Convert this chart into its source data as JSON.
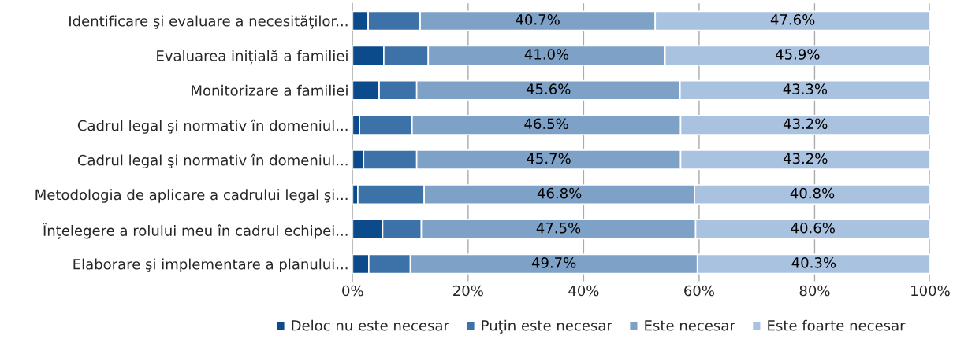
{
  "chart_data": {
    "type": "bar",
    "orientation": "horizontal",
    "stacked": true,
    "categories": [
      "Identificare şi evaluare a necesităţilor...",
      "Evaluarea inițială a familiei",
      "Monitorizare a familiei",
      "Cadrul legal şi normativ în domeniul...",
      "Cadrul legal şi normativ în domeniul...",
      "Metodologia de aplicare a cadrului legal şi...",
      "Înțelegere a rolului meu în cadrul echipei...",
      "Elaborare şi implementare a planului..."
    ],
    "series": [
      {
        "name": "Deloc nu este necesar",
        "color": "#0b4a8b",
        "values": [
          2.7,
          5.4,
          4.6,
          1.2,
          1.9,
          0.9,
          5.2,
          2.8
        ]
      },
      {
        "name": "Puţin este necesar",
        "color": "#3c72a8",
        "values": [
          9.0,
          7.7,
          6.5,
          9.1,
          9.2,
          11.5,
          6.7,
          7.2
        ]
      },
      {
        "name": "Este necesar",
        "color": "#7ea2c7",
        "values": [
          40.7,
          41.0,
          45.6,
          46.5,
          45.7,
          46.8,
          47.5,
          49.7
        ],
        "value_labels": [
          "40.7%",
          "41.0%",
          "45.6%",
          "46.5%",
          "45.7%",
          "46.8%",
          "47.5%",
          "49.7%"
        ]
      },
      {
        "name": "Este foarte necesar",
        "color": "#a9c2df",
        "values": [
          47.6,
          45.9,
          43.3,
          43.2,
          43.2,
          40.8,
          40.6,
          40.3
        ],
        "value_labels": [
          "47.6%",
          "45.9%",
          "43.3%",
          "43.2%",
          "43.2%",
          "40.8%",
          "40.6%",
          "40.3%"
        ]
      }
    ],
    "xlim": [
      0,
      100
    ],
    "xticks": [
      {
        "value": 0,
        "label": "0%"
      },
      {
        "value": 20,
        "label": "20%"
      },
      {
        "value": 40,
        "label": "40%"
      },
      {
        "value": 60,
        "label": "60%"
      },
      {
        "value": 80,
        "label": "80%"
      },
      {
        "value": 100,
        "label": "100%"
      }
    ],
    "grid": "x",
    "legend": "bottom"
  }
}
